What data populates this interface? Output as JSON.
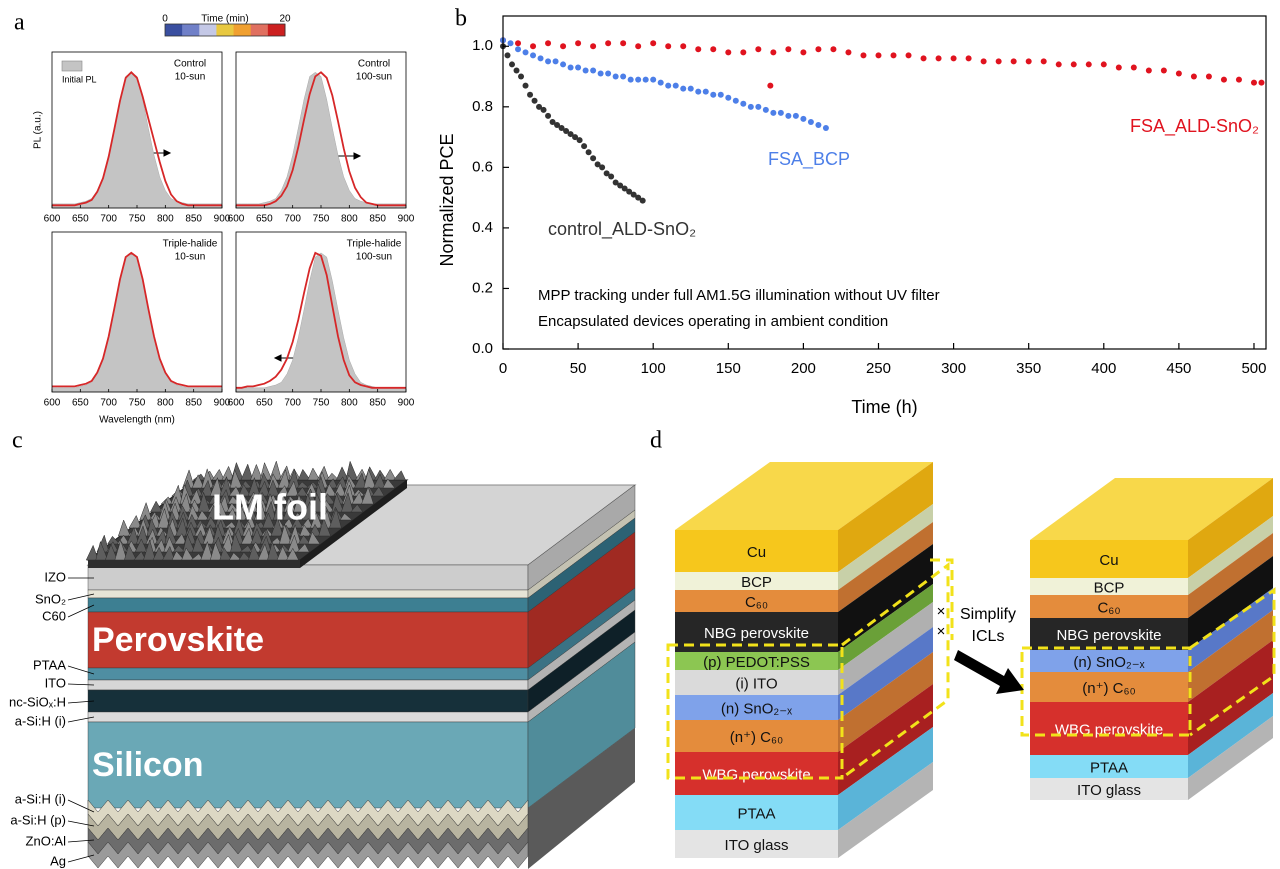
{
  "labels": [
    "a",
    "b",
    "c",
    "d"
  ],
  "colorbar": {
    "title": "Time (min)",
    "ticks": [
      0,
      20
    ],
    "colors": [
      "#3a4fa0",
      "#7080c8",
      "#c4c8e6",
      "#e8c840",
      "#f0a030",
      "#e07060",
      "#cc2020"
    ]
  },
  "chart_data": [
    {
      "type": "line",
      "title": [
        "Control",
        "10-sun"
      ],
      "ylabel": "PL (a.u.)",
      "x": [
        600,
        610,
        620,
        630,
        640,
        650,
        660,
        670,
        680,
        690,
        700,
        710,
        720,
        730,
        740,
        750,
        760,
        770,
        780,
        790,
        800,
        810,
        820,
        830,
        840,
        850,
        860,
        870,
        880,
        890,
        900
      ],
      "xlim": [
        600,
        900
      ],
      "ylim": [
        0,
        1.15
      ],
      "xticks": [
        600,
        650,
        700,
        750,
        800,
        850,
        900
      ],
      "series": [
        {
          "name": "Initial PL",
          "color": "#c4c4c4",
          "fill": true,
          "values": [
            0.03,
            0.03,
            0.03,
            0.03,
            0.03,
            0.04,
            0.05,
            0.07,
            0.13,
            0.23,
            0.39,
            0.59,
            0.8,
            0.97,
            1.0,
            0.97,
            0.8,
            0.59,
            0.39,
            0.23,
            0.13,
            0.07,
            0.05,
            0.04,
            0.03,
            0.03,
            0.03,
            0.03,
            0.03,
            0.03,
            0.03
          ]
        },
        {
          "color": "#d62728",
          "values": [
            0.02,
            0.02,
            0.02,
            0.02,
            0.02,
            0.03,
            0.04,
            0.06,
            0.12,
            0.22,
            0.38,
            0.58,
            0.79,
            0.96,
            1.0,
            0.96,
            0.82,
            0.66,
            0.5,
            0.34,
            0.2,
            0.1,
            0.05,
            0.03,
            0.02,
            0.02,
            0.02,
            0.02,
            0.02,
            0.02,
            0.02
          ]
        }
      ]
    },
    {
      "type": "line",
      "title": [
        "Control",
        "100-sun"
      ],
      "x": [
        600,
        610,
        620,
        630,
        640,
        650,
        660,
        670,
        680,
        690,
        700,
        710,
        720,
        730,
        740,
        750,
        760,
        770,
        780,
        790,
        800,
        810,
        820,
        830,
        840,
        850,
        860,
        870,
        880,
        890,
        900
      ],
      "xlim": [
        600,
        900
      ],
      "ylim": [
        0,
        1.15
      ],
      "xticks": [
        600,
        650,
        700,
        750,
        800,
        850,
        900
      ],
      "series": [
        {
          "color": "#c4c4c4",
          "fill": true,
          "values": [
            0.03,
            0.03,
            0.03,
            0.03,
            0.03,
            0.04,
            0.05,
            0.07,
            0.13,
            0.23,
            0.39,
            0.59,
            0.8,
            0.97,
            1.0,
            0.97,
            0.8,
            0.59,
            0.39,
            0.23,
            0.13,
            0.07,
            0.05,
            0.04,
            0.03,
            0.03,
            0.03,
            0.03,
            0.03,
            0.03,
            0.03
          ]
        },
        {
          "color": "#d62728",
          "values": [
            0.02,
            0.02,
            0.02,
            0.02,
            0.02,
            0.02,
            0.03,
            0.05,
            0.09,
            0.16,
            0.28,
            0.45,
            0.65,
            0.84,
            0.97,
            1.0,
            0.96,
            0.83,
            0.64,
            0.44,
            0.27,
            0.15,
            0.08,
            0.04,
            0.03,
            0.02,
            0.02,
            0.02,
            0.02,
            0.02,
            0.02
          ]
        }
      ]
    },
    {
      "type": "line",
      "title": [
        "Triple-halide",
        "10-sun"
      ],
      "x": [
        600,
        610,
        620,
        630,
        640,
        650,
        660,
        670,
        680,
        690,
        700,
        710,
        720,
        730,
        740,
        750,
        760,
        770,
        780,
        790,
        800,
        810,
        820,
        830,
        840,
        850,
        860,
        870,
        880,
        890,
        900
      ],
      "xlim": [
        600,
        900
      ],
      "ylim": [
        0,
        1.15
      ],
      "xticks": [
        600,
        650,
        700,
        750,
        800,
        850,
        900
      ],
      "xlabel": "Wavelength (nm)",
      "series": [
        {
          "color": "#c4c4c4",
          "fill": true,
          "values": [
            0.03,
            0.03,
            0.03,
            0.03,
            0.03,
            0.04,
            0.05,
            0.07,
            0.13,
            0.23,
            0.39,
            0.59,
            0.8,
            0.97,
            1.0,
            0.97,
            0.8,
            0.59,
            0.39,
            0.23,
            0.13,
            0.07,
            0.05,
            0.04,
            0.03,
            0.03,
            0.03,
            0.03,
            0.03,
            0.03,
            0.03
          ]
        },
        {
          "color": "#d62728",
          "values": [
            0.04,
            0.04,
            0.04,
            0.04,
            0.04,
            0.05,
            0.06,
            0.08,
            0.14,
            0.24,
            0.4,
            0.6,
            0.81,
            0.97,
            1.0,
            0.97,
            0.81,
            0.6,
            0.4,
            0.24,
            0.14,
            0.08,
            0.06,
            0.05,
            0.04,
            0.04,
            0.04,
            0.04,
            0.04,
            0.04,
            0.04
          ]
        }
      ]
    },
    {
      "type": "line",
      "title": [
        "Triple-halide",
        "100-sun"
      ],
      "x": [
        600,
        610,
        620,
        630,
        640,
        650,
        660,
        670,
        680,
        690,
        700,
        710,
        720,
        730,
        740,
        750,
        760,
        770,
        780,
        790,
        800,
        810,
        820,
        830,
        840,
        850,
        860,
        870,
        880,
        890,
        900
      ],
      "xlim": [
        600,
        900
      ],
      "ylim": [
        0,
        1.15
      ],
      "xticks": [
        600,
        650,
        700,
        750,
        800,
        850,
        900
      ],
      "series": [
        {
          "color": "#c4c4c4",
          "fill": true,
          "values": [
            0.03,
            0.03,
            0.03,
            0.03,
            0.03,
            0.03,
            0.04,
            0.05,
            0.07,
            0.13,
            0.23,
            0.39,
            0.59,
            0.8,
            0.97,
            1.0,
            0.97,
            0.8,
            0.59,
            0.39,
            0.23,
            0.13,
            0.07,
            0.05,
            0.04,
            0.03,
            0.03,
            0.03,
            0.03,
            0.03,
            0.03
          ]
        },
        {
          "color": "#d62728",
          "values": [
            0.03,
            0.03,
            0.04,
            0.04,
            0.05,
            0.06,
            0.08,
            0.11,
            0.16,
            0.24,
            0.36,
            0.52,
            0.71,
            0.89,
            1.0,
            0.98,
            0.84,
            0.62,
            0.4,
            0.23,
            0.12,
            0.07,
            0.05,
            0.04,
            0.03,
            0.03,
            0.03,
            0.03,
            0.03,
            0.03,
            0.03
          ]
        }
      ]
    },
    {
      "type": "scatter",
      "xlabel": "Time (h)",
      "ylabel": "Normalized PCE",
      "xlim": [
        0,
        508
      ],
      "ylim": [
        0,
        1.1
      ],
      "xticks": [
        0,
        50,
        100,
        150,
        200,
        250,
        300,
        350,
        400,
        450,
        500
      ],
      "yticks": [
        {
          "value": 0,
          "label": "0.0"
        },
        0.2,
        0.4,
        0.6,
        0.8,
        {
          "value": 1,
          "label": "1.0"
        }
      ],
      "annotations": [
        "MPP tracking under full AM1.5G illumination without UV filter",
        "Encapsulated devices operating in ambient condition"
      ],
      "series": [
        {
          "name": "FSA_ALD-SnO₂",
          "color": "#e0131f",
          "x": [
            0,
            10,
            20,
            30,
            40,
            50,
            60,
            70,
            80,
            90,
            100,
            110,
            120,
            130,
            140,
            150,
            160,
            170,
            178,
            180,
            190,
            200,
            210,
            220,
            230,
            240,
            250,
            260,
            270,
            280,
            290,
            300,
            310,
            320,
            330,
            340,
            350,
            360,
            370,
            380,
            390,
            400,
            410,
            420,
            430,
            440,
            450,
            460,
            470,
            480,
            490,
            500,
            505
          ],
          "values": [
            1.02,
            1.01,
            1.0,
            1.01,
            1.0,
            1.01,
            1.0,
            1.01,
            1.01,
            1.0,
            1.01,
            1.0,
            1.0,
            0.99,
            0.99,
            0.98,
            0.98,
            0.99,
            0.87,
            0.98,
            0.99,
            0.98,
            0.99,
            0.99,
            0.98,
            0.97,
            0.97,
            0.97,
            0.97,
            0.96,
            0.96,
            0.96,
            0.96,
            0.95,
            0.95,
            0.95,
            0.95,
            0.95,
            0.94,
            0.94,
            0.94,
            0.94,
            0.93,
            0.93,
            0.92,
            0.92,
            0.91,
            0.9,
            0.9,
            0.89,
            0.89,
            0.88,
            0.88
          ]
        },
        {
          "name": "FSA_BCP",
          "color": "#4d7fe8",
          "x": [
            0,
            5,
            10,
            15,
            20,
            25,
            30,
            35,
            40,
            45,
            50,
            55,
            60,
            65,
            70,
            75,
            80,
            85,
            90,
            95,
            100,
            105,
            110,
            115,
            120,
            125,
            130,
            135,
            140,
            145,
            150,
            155,
            160,
            165,
            170,
            175,
            180,
            185,
            190,
            195,
            200,
            205,
            210,
            215
          ],
          "values": [
            1.02,
            1.01,
            0.99,
            0.98,
            0.97,
            0.96,
            0.95,
            0.95,
            0.94,
            0.93,
            0.93,
            0.92,
            0.92,
            0.91,
            0.91,
            0.9,
            0.9,
            0.89,
            0.89,
            0.89,
            0.89,
            0.88,
            0.87,
            0.87,
            0.86,
            0.86,
            0.85,
            0.85,
            0.84,
            0.84,
            0.83,
            0.82,
            0.81,
            0.8,
            0.8,
            0.79,
            0.78,
            0.78,
            0.77,
            0.77,
            0.76,
            0.75,
            0.74,
            0.73
          ]
        },
        {
          "name": "control_ALD-SnO₂",
          "color": "#333333",
          "x": [
            0,
            3,
            6,
            9,
            12,
            15,
            18,
            21,
            24,
            27,
            30,
            33,
            36,
            39,
            42,
            45,
            48,
            51,
            54,
            57,
            60,
            63,
            66,
            69,
            72,
            75,
            78,
            81,
            84,
            87,
            90,
            93
          ],
          "values": [
            1.0,
            0.97,
            0.94,
            0.92,
            0.9,
            0.87,
            0.84,
            0.82,
            0.8,
            0.79,
            0.77,
            0.75,
            0.74,
            0.73,
            0.72,
            0.71,
            0.7,
            0.69,
            0.67,
            0.65,
            0.63,
            0.61,
            0.6,
            0.58,
            0.57,
            0.55,
            0.54,
            0.53,
            0.52,
            0.51,
            0.5,
            0.49
          ]
        }
      ]
    }
  ],
  "diagram_c": {
    "foil": "LM foil",
    "perovskite": "Perovskite",
    "silicon": "Silicon",
    "layers": [
      "IZO",
      "SnO₂",
      "C60",
      "PTAA",
      "ITO",
      "nc-SiOₓ:H",
      "a-Si:H (i)",
      "a-Si:H (i)",
      "a-Si:H (p)",
      "ZnO:Al",
      "Ag"
    ]
  },
  "diagram_d": {
    "left": [
      "Cu",
      "BCP",
      "C₆₀",
      "NBG perovskite",
      "(p) PEDOT:PSS",
      "(i) ITO",
      "(n) SnO₂₋ₓ",
      "(n⁺) C₆₀",
      "WBG perovskite",
      "PTAA",
      "ITO glass"
    ],
    "right": [
      "Cu",
      "BCP",
      "C₆₀",
      "NBG perovskite",
      "(n) SnO₂₋ₓ",
      "(n⁺) C₆₀",
      "WBG perovskite",
      "PTAA",
      "ITO glass"
    ],
    "arrow": [
      "Simplify",
      "ICLs"
    ],
    "marks": [
      "×",
      "×"
    ]
  }
}
